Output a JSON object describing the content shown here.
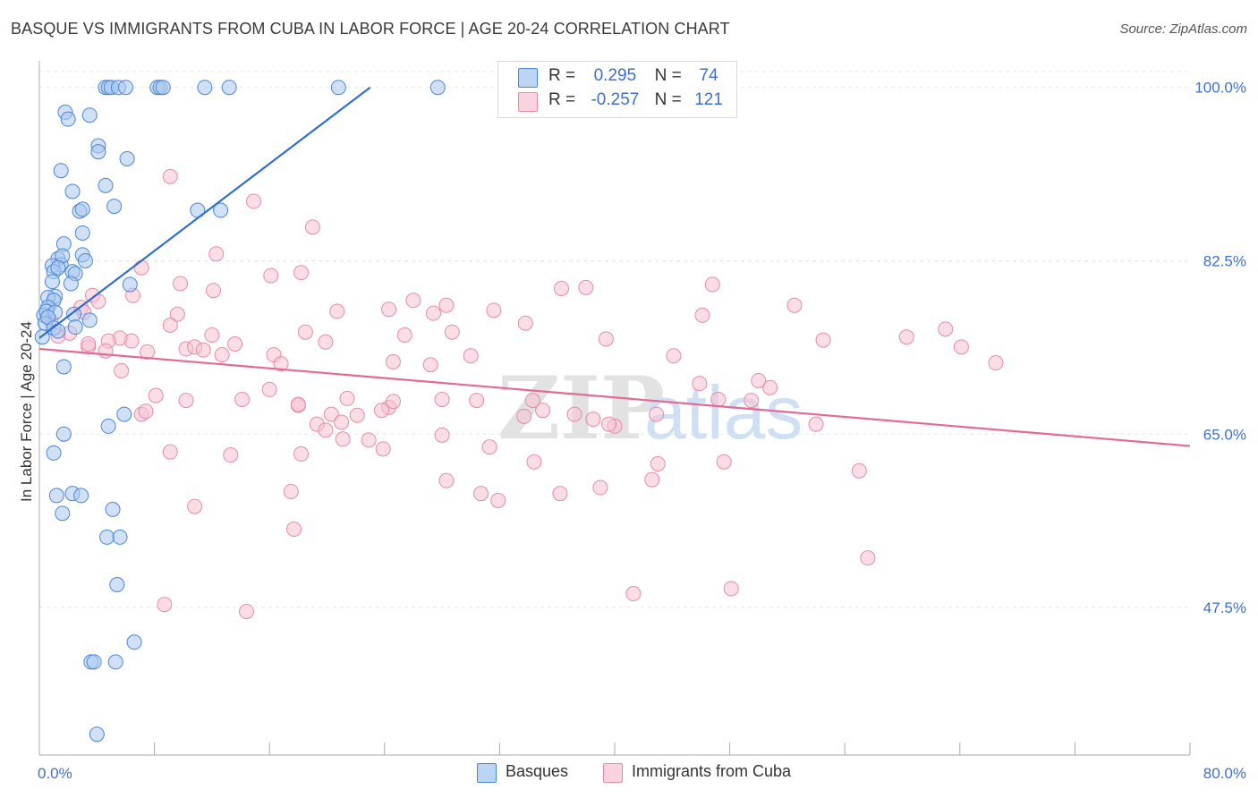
{
  "title": "BASQUE VS IMMIGRANTS FROM CUBA IN LABOR FORCE | AGE 20-24 CORRELATION CHART",
  "source": "Source: ZipAtlas.com",
  "watermark": {
    "zip": "ZIP",
    "atlas": "atlas"
  },
  "colors": {
    "basque_fill": "#a9c8f0",
    "basque_stroke": "#4a86d9",
    "basque_line": "#2f6fd0",
    "cuba_fill": "#f7c1d2",
    "cuba_stroke": "#e58ca8",
    "cuba_line": "#e36a95",
    "axis_label": "#3d6fcf"
  },
  "legend": {
    "rows": [
      {
        "r_label": "R =",
        "r_value": "0.295",
        "n_label": "N =",
        "n_value": "74"
      },
      {
        "r_label": "R =",
        "r_value": "-0.257",
        "n_label": "N =",
        "n_value": "121"
      }
    ]
  },
  "bottom_legend": [
    "Basques",
    "Immigrants from Cuba"
  ],
  "chart_data": {
    "type": "scatter",
    "title": "BASQUE VS IMMIGRANTS FROM CUBA IN LABOR FORCE | AGE 20-24 CORRELATION CHART",
    "xlabel": "",
    "ylabel": "In Labor Force | Age 20-24",
    "xlim": [
      0,
      80
    ],
    "ylim": [
      32.6,
      101.6
    ],
    "x_tick_labels": [
      "0.0%",
      "80.0%"
    ],
    "y_ticks": [
      100.0,
      82.5,
      65.0,
      47.5
    ],
    "y_tick_labels": [
      "100.0%",
      "82.5%",
      "65.0%",
      "47.5%"
    ],
    "grid": true,
    "legend_position": "top-center",
    "series": [
      {
        "name": "Basques",
        "r": 0.295,
        "n": 74,
        "trend": {
          "x": [
            0,
            23.0
          ],
          "y": [
            74.7,
            100.0
          ]
        },
        "points": [
          [
            4.6,
            100
          ],
          [
            4.8,
            100
          ],
          [
            5.0,
            100
          ],
          [
            5.5,
            100
          ],
          [
            6.0,
            100
          ],
          [
            8.2,
            100
          ],
          [
            8.4,
            100
          ],
          [
            8.6,
            100
          ],
          [
            11.5,
            100
          ],
          [
            13.2,
            100
          ],
          [
            20.8,
            100
          ],
          [
            27.7,
            100
          ],
          [
            1.8,
            97.5
          ],
          [
            2.0,
            96.8
          ],
          [
            3.5,
            97.2
          ],
          [
            4.1,
            94.1
          ],
          [
            4.1,
            93.5
          ],
          [
            6.1,
            92.8
          ],
          [
            1.5,
            91.6
          ],
          [
            4.6,
            90.1
          ],
          [
            2.3,
            89.5
          ],
          [
            2.8,
            87.5
          ],
          [
            3.0,
            87.7
          ],
          [
            5.2,
            88.0
          ],
          [
            11.0,
            87.6
          ],
          [
            12.6,
            87.6
          ],
          [
            3.0,
            85.3
          ],
          [
            1.7,
            84.2
          ],
          [
            3.0,
            83.1
          ],
          [
            1.3,
            82.7
          ],
          [
            1.5,
            82.1
          ],
          [
            1.6,
            83.0
          ],
          [
            3.2,
            82.5
          ],
          [
            0.9,
            82.0
          ],
          [
            1.0,
            81.4
          ],
          [
            1.3,
            81.8
          ],
          [
            2.3,
            81.4
          ],
          [
            2.5,
            81.2
          ],
          [
            0.9,
            80.4
          ],
          [
            2.2,
            80.2
          ],
          [
            6.3,
            80.1
          ],
          [
            1.1,
            78.9
          ],
          [
            0.6,
            78.8
          ],
          [
            1.0,
            78.5
          ],
          [
            0.6,
            77.8
          ],
          [
            0.3,
            77.0
          ],
          [
            0.5,
            77.4
          ],
          [
            1.1,
            77.3
          ],
          [
            2.4,
            77.1
          ],
          [
            3.5,
            76.5
          ],
          [
            0.4,
            76.2
          ],
          [
            0.6,
            76.8
          ],
          [
            1.0,
            75.7
          ],
          [
            1.3,
            75.4
          ],
          [
            2.5,
            75.8
          ],
          [
            0.2,
            74.8
          ],
          [
            1.7,
            71.8
          ],
          [
            5.9,
            67.0
          ],
          [
            4.8,
            65.8
          ],
          [
            1.7,
            65.0
          ],
          [
            1.0,
            63.1
          ],
          [
            1.2,
            58.8
          ],
          [
            2.3,
            59.0
          ],
          [
            2.9,
            58.8
          ],
          [
            1.6,
            57.0
          ],
          [
            5.1,
            57.4
          ],
          [
            4.7,
            54.6
          ],
          [
            5.6,
            54.6
          ],
          [
            5.4,
            49.8
          ],
          [
            6.6,
            44.0
          ],
          [
            3.6,
            42.0
          ],
          [
            3.8,
            42.0
          ],
          [
            5.3,
            42.0
          ],
          [
            4.0,
            34.7
          ]
        ]
      },
      {
        "name": "Immigrants from Cuba",
        "r": -0.257,
        "n": 121,
        "trend": {
          "x": [
            0,
            80
          ],
          "y": [
            73.6,
            63.8
          ]
        },
        "points": [
          [
            9.1,
            91.0
          ],
          [
            14.9,
            88.5
          ],
          [
            19.0,
            85.9
          ],
          [
            12.3,
            83.2
          ],
          [
            7.1,
            81.8
          ],
          [
            16.1,
            81.0
          ],
          [
            18.2,
            81.3
          ],
          [
            9.8,
            80.2
          ],
          [
            12.1,
            79.5
          ],
          [
            26.0,
            78.5
          ],
          [
            36.3,
            79.7
          ],
          [
            38.0,
            79.8
          ],
          [
            46.8,
            80.1
          ],
          [
            28.3,
            78.0
          ],
          [
            52.5,
            78.0
          ],
          [
            6.5,
            79.0
          ],
          [
            3.7,
            79.0
          ],
          [
            4.1,
            78.4
          ],
          [
            20.7,
            77.4
          ],
          [
            24.3,
            77.6
          ],
          [
            27.4,
            77.2
          ],
          [
            31.6,
            77.5
          ],
          [
            33.8,
            76.2
          ],
          [
            46.1,
            77.0
          ],
          [
            2.9,
            77.8
          ],
          [
            3.1,
            77.3
          ],
          [
            9.6,
            77.1
          ],
          [
            9.1,
            76.0
          ],
          [
            12.0,
            75.0
          ],
          [
            18.5,
            75.3
          ],
          [
            25.4,
            75.0
          ],
          [
            28.7,
            75.3
          ],
          [
            39.4,
            74.6
          ],
          [
            54.5,
            74.5
          ],
          [
            60.3,
            74.8
          ],
          [
            63.0,
            75.6
          ],
          [
            13.6,
            74.1
          ],
          [
            6.4,
            74.4
          ],
          [
            5.6,
            74.7
          ],
          [
            4.8,
            74.4
          ],
          [
            2.1,
            75.2
          ],
          [
            3.4,
            73.8
          ],
          [
            4.6,
            73.4
          ],
          [
            7.5,
            73.3
          ],
          [
            10.2,
            73.6
          ],
          [
            10.8,
            73.8
          ],
          [
            11.4,
            73.5
          ],
          [
            12.7,
            73.0
          ],
          [
            16.3,
            73.0
          ],
          [
            19.9,
            74.3
          ],
          [
            24.6,
            72.3
          ],
          [
            30.0,
            72.9
          ],
          [
            44.1,
            72.9
          ],
          [
            64.1,
            73.8
          ],
          [
            66.5,
            72.2
          ],
          [
            16.8,
            72.1
          ],
          [
            0.8,
            76.4
          ],
          [
            1.3,
            74.9
          ],
          [
            3.4,
            74.1
          ],
          [
            5.7,
            71.4
          ],
          [
            16.0,
            69.5
          ],
          [
            18.0,
            67.9
          ],
          [
            14.1,
            68.5
          ],
          [
            10.2,
            68.4
          ],
          [
            18.0,
            68.0
          ],
          [
            21.4,
            68.6
          ],
          [
            8.1,
            68.9
          ],
          [
            7.1,
            67.0
          ],
          [
            7.4,
            67.3
          ],
          [
            24.3,
            67.7
          ],
          [
            24.6,
            68.3
          ],
          [
            30.4,
            68.4
          ],
          [
            34.3,
            68.4
          ],
          [
            35.0,
            67.4
          ],
          [
            37.2,
            67.0
          ],
          [
            42.9,
            67.0
          ],
          [
            47.2,
            68.5
          ],
          [
            49.5,
            68.4
          ],
          [
            50.8,
            69.7
          ],
          [
            20.3,
            67.0
          ],
          [
            19.3,
            66.0
          ],
          [
            19.9,
            65.4
          ],
          [
            21.0,
            66.2
          ],
          [
            22.1,
            66.9
          ],
          [
            23.8,
            67.4
          ],
          [
            38.5,
            66.5
          ],
          [
            40.0,
            65.8
          ],
          [
            54.0,
            66.0
          ],
          [
            28.0,
            64.9
          ],
          [
            21.1,
            64.5
          ],
          [
            22.9,
            64.4
          ],
          [
            23.9,
            63.5
          ],
          [
            31.3,
            63.7
          ],
          [
            18.2,
            63.0
          ],
          [
            9.1,
            63.2
          ],
          [
            13.3,
            62.9
          ],
          [
            34.4,
            62.2
          ],
          [
            43.0,
            62.0
          ],
          [
            42.6,
            60.4
          ],
          [
            47.6,
            62.2
          ],
          [
            57.0,
            61.3
          ],
          [
            28.3,
            60.3
          ],
          [
            30.7,
            59.0
          ],
          [
            31.9,
            58.3
          ],
          [
            36.2,
            59.0
          ],
          [
            39.0,
            59.6
          ],
          [
            17.5,
            59.2
          ],
          [
            10.8,
            57.7
          ],
          [
            17.7,
            55.4
          ],
          [
            57.6,
            52.5
          ],
          [
            41.3,
            48.9
          ],
          [
            48.1,
            49.4
          ],
          [
            8.7,
            47.8
          ],
          [
            14.4,
            47.1
          ],
          [
            27.2,
            72.0
          ],
          [
            28.0,
            68.5
          ],
          [
            33.7,
            66.8
          ],
          [
            39.6,
            66.0
          ],
          [
            45.9,
            70.1
          ],
          [
            50.0,
            70.4
          ]
        ]
      }
    ]
  }
}
